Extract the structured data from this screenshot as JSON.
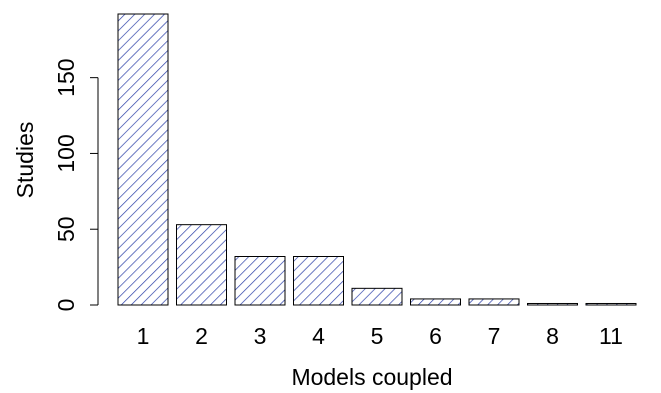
{
  "chart_data": {
    "type": "bar",
    "categories": [
      "1",
      "2",
      "3",
      "4",
      "5",
      "6",
      "7",
      "8",
      "11"
    ],
    "values": [
      192,
      53,
      32,
      32,
      11,
      4,
      4,
      1,
      1
    ],
    "xlabel": "Models coupled",
    "ylabel": "Studies",
    "ylim": [
      0,
      192
    ],
    "yticks": [
      0,
      50,
      100,
      150
    ],
    "grid": false,
    "bar_fill": "hatched",
    "bar_color": "#2b3fa8",
    "bar_outline": "#000000"
  }
}
